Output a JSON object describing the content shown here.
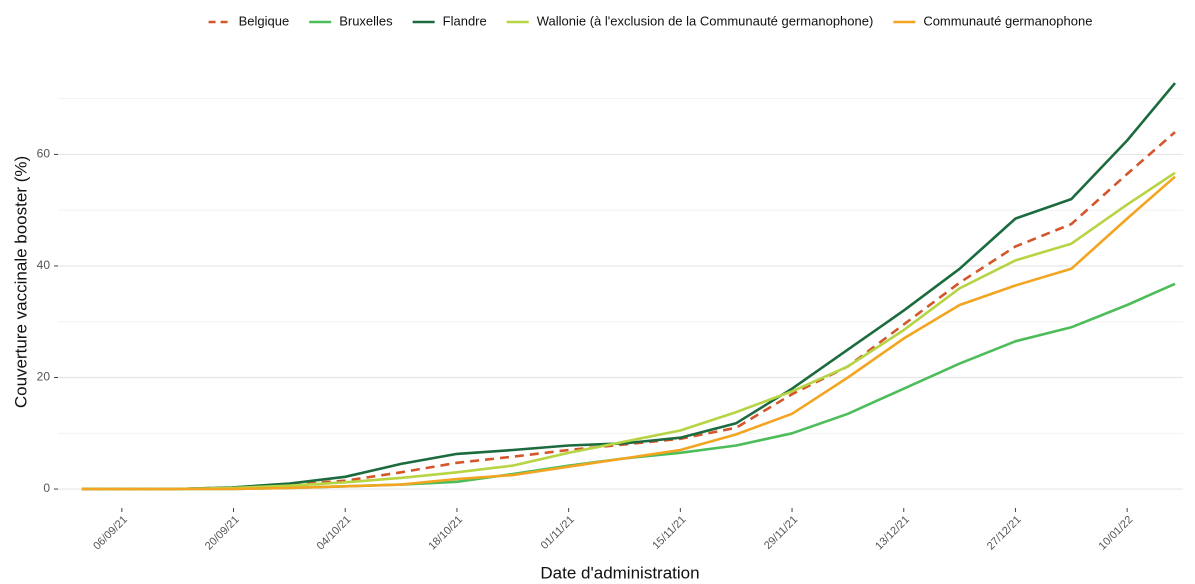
{
  "chart_data": {
    "type": "line",
    "x_label": "Date d'administration",
    "y_label": "Couverture vaccinale booster (%)",
    "x": [
      "2021-09-01",
      "2021-09-06",
      "2021-09-13",
      "2021-09-20",
      "2021-09-27",
      "2021-10-04",
      "2021-10-11",
      "2021-10-18",
      "2021-10-25",
      "2021-11-01",
      "2021-11-08",
      "2021-11-15",
      "2021-11-22",
      "2021-11-29",
      "2021-12-06",
      "2021-12-13",
      "2021-12-20",
      "2021-12-27",
      "2022-01-03",
      "2022-01-10",
      "2022-01-16"
    ],
    "series": [
      {
        "name": "Belgique",
        "color": "#d4562a",
        "linestyle": "dashed",
        "values": [
          0,
          0,
          0,
          0.3,
          0.8,
          1.5,
          3,
          4.7,
          5.8,
          7,
          8,
          9,
          11,
          17,
          22,
          29.5,
          37,
          43.5,
          47.5,
          56.5,
          64
        ]
      },
      {
        "name": "Bruxelles",
        "color": "#4dbd5a",
        "linestyle": "solid",
        "values": [
          0,
          0,
          0,
          0,
          0.2,
          0.5,
          0.8,
          1.3,
          2.7,
          4.2,
          5.5,
          6.5,
          7.8,
          10,
          13.5,
          18,
          22.5,
          26.5,
          29,
          33,
          36.8
        ]
      },
      {
        "name": "Flandre",
        "color": "#1b6b3e",
        "linestyle": "solid",
        "values": [
          0,
          0,
          0,
          0.3,
          1,
          2.2,
          4.5,
          6.3,
          7,
          7.8,
          8.2,
          9.2,
          11.8,
          18,
          25,
          32,
          39.5,
          48.5,
          52,
          62.5,
          72.8
        ]
      },
      {
        "name": "Wallonie (à l'exclusion de la Communauté germanophone)",
        "color": "#b6d443",
        "linestyle": "solid",
        "values": [
          0,
          0,
          0,
          0.2,
          0.6,
          1.2,
          2,
          3,
          4.2,
          6.5,
          8.5,
          10.5,
          13.8,
          17.5,
          22,
          28.5,
          36,
          41,
          44,
          51,
          56.7
        ]
      },
      {
        "name": "Communauté germanophone",
        "color": "#f3a522",
        "linestyle": "solid",
        "values": [
          0,
          0,
          0,
          0,
          0.2,
          0.5,
          0.8,
          1.8,
          2.5,
          4,
          5.5,
          7,
          9.8,
          13.5,
          20,
          27,
          33,
          36.5,
          39.5,
          48.5,
          56
        ]
      }
    ],
    "xlim": [
      "2021-08-29",
      "2022-01-17"
    ],
    "xticks": [
      {
        "value": "2021-09-06",
        "label": "06/09/21"
      },
      {
        "value": "2021-09-20",
        "label": "20/09/21"
      },
      {
        "value": "2021-10-04",
        "label": "04/10/21"
      },
      {
        "value": "2021-10-18",
        "label": "18/10/21"
      },
      {
        "value": "2021-11-01",
        "label": "01/11/21"
      },
      {
        "value": "2021-11-15",
        "label": "15/11/21"
      },
      {
        "value": "2021-11-29",
        "label": "29/11/21"
      },
      {
        "value": "2021-12-13",
        "label": "13/12/21"
      },
      {
        "value": "2021-12-27",
        "label": "27/12/21"
      },
      {
        "value": "2022-01-10",
        "label": "10/01/22"
      }
    ],
    "ylim": [
      -3.4,
      75.5
    ],
    "yticks": [
      0,
      20,
      40,
      60
    ],
    "y_minor_grid": [
      10,
      30,
      50,
      70
    ],
    "grid": true,
    "legend": "top"
  }
}
